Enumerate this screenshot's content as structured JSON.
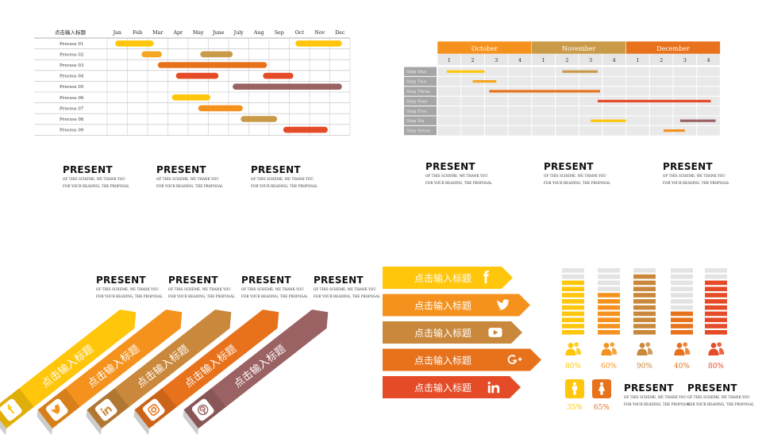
{
  "gantt1": {
    "header": "点击输入标题",
    "months": [
      "Jan",
      "Feb",
      "Mar",
      "Apr",
      "May",
      "June",
      "July",
      "Aug",
      "Sep",
      "Oct",
      "Nov",
      "Dec"
    ],
    "rows": [
      {
        "label": "Process 01",
        "bars": [
          {
            "start": 0.4,
            "end": 2.3,
            "color": "#FFC60B"
          },
          {
            "start": 9.3,
            "end": 11.6,
            "color": "#FFC60B"
          }
        ]
      },
      {
        "label": "Process 02",
        "bars": [
          {
            "start": 1.7,
            "end": 2.7,
            "color": "#F5A623"
          },
          {
            "start": 4.6,
            "end": 6.2,
            "color": "#C99A48"
          }
        ]
      },
      {
        "label": "Process 03",
        "bars": [
          {
            "start": 2.5,
            "end": 7.9,
            "color": "#E8721C"
          }
        ]
      },
      {
        "label": "Process 04",
        "bars": [
          {
            "start": 3.4,
            "end": 5.5,
            "color": "#E54B26"
          },
          {
            "start": 7.7,
            "end": 9.2,
            "color": "#E54B26"
          }
        ]
      },
      {
        "label": "Process 05",
        "bars": [
          {
            "start": 6.2,
            "end": 11.6,
            "color": "#9B6263"
          }
        ]
      },
      {
        "label": "Process 06",
        "bars": [
          {
            "start": 3.2,
            "end": 5.1,
            "color": "#FFC60B"
          }
        ]
      },
      {
        "label": "Process 07",
        "bars": [
          {
            "start": 4.5,
            "end": 6.7,
            "color": "#F5921E"
          }
        ]
      },
      {
        "label": "Process 08",
        "bars": [
          {
            "start": 6.6,
            "end": 8.4,
            "color": "#C99A48"
          }
        ]
      },
      {
        "label": "Process 09",
        "bars": [
          {
            "start": 8.7,
            "end": 10.9,
            "color": "#E54B26"
          }
        ]
      }
    ]
  },
  "gantt2": {
    "months": [
      {
        "name": "October",
        "color": "#F5921E"
      },
      {
        "name": "November",
        "color": "#C99A48"
      },
      {
        "name": "December",
        "color": "#E8721C"
      }
    ],
    "weeks": [
      "1",
      "2",
      "3",
      "4",
      "1",
      "2",
      "3",
      "4",
      "1",
      "2",
      "3",
      "4"
    ],
    "steps": [
      {
        "label": "Step One",
        "bars": [
          {
            "start": 0.4,
            "end": 2.0,
            "color": "#FFC60B"
          },
          {
            "start": 5.3,
            "end": 6.8,
            "color": "#C99A48"
          }
        ]
      },
      {
        "label": "Step Two",
        "bars": [
          {
            "start": 1.5,
            "end": 2.5,
            "color": "#F5A623"
          }
        ]
      },
      {
        "label": "Step Three",
        "bars": [
          {
            "start": 2.2,
            "end": 6.9,
            "color": "#E8721C"
          }
        ]
      },
      {
        "label": "Step Four",
        "bars": [
          {
            "start": 6.8,
            "end": 11.6,
            "color": "#E54B26"
          }
        ]
      },
      {
        "label": "Step Five",
        "bars": []
      },
      {
        "label": "Step Six",
        "bars": [
          {
            "start": 6.5,
            "end": 8.0,
            "color": "#FFC60B"
          },
          {
            "start": 10.3,
            "end": 11.8,
            "color": "#9B6263"
          }
        ]
      },
      {
        "label": "Step Seven",
        "bars": [
          {
            "start": 9.6,
            "end": 10.5,
            "color": "#F5921E"
          }
        ]
      }
    ]
  },
  "present_blocks": {
    "title": "PRESENT",
    "line1": "OF THIS SCHEME, WE THANK YOU",
    "line2": "FOR YOUR READING, THE PROPOSAL"
  },
  "ribbons": [
    {
      "label": "点击输入标题",
      "color": "#FFC60B",
      "icon": "facebook-icon"
    },
    {
      "label": "点击输入标题",
      "color": "#F5921E",
      "icon": "twitter-icon"
    },
    {
      "label": "点击输入标题",
      "color": "#C9883B",
      "icon": "linkedin-icon"
    },
    {
      "label": "点击输入标题",
      "color": "#E8721C",
      "icon": "instagram-icon"
    },
    {
      "label": "点击输入标题",
      "color": "#9B6263",
      "icon": "pinterest-icon"
    }
  ],
  "social_arrows": [
    {
      "label": "点击输入标题",
      "color": "#FFC60B",
      "icon": "facebook-icon"
    },
    {
      "label": "点击输入标题",
      "color": "#F5921E",
      "icon": "twitter-icon"
    },
    {
      "label": "点击输入标题",
      "color": "#C9883B",
      "icon": "youtube-icon"
    },
    {
      "label": "点击输入标题",
      "color": "#E8721C",
      "icon": "google-plus-icon"
    },
    {
      "label": "点击输入标题",
      "color": "#E54B26",
      "icon": "linkedin-icon"
    }
  ],
  "level_bars": [
    {
      "percent": "80%",
      "level": 0.8,
      "color": "#FFC60B"
    },
    {
      "percent": "60%",
      "level": 0.6,
      "color": "#F5921E"
    },
    {
      "percent": "90%",
      "level": 0.9,
      "color": "#C9883B"
    },
    {
      "percent": "40%",
      "level": 0.4,
      "color": "#E8721C"
    },
    {
      "percent": "80%",
      "level": 0.8,
      "color": "#E54B26"
    }
  ],
  "gender": [
    {
      "percent": "35%",
      "icon": "male-icon",
      "color": "#FFC60B"
    },
    {
      "percent": "65%",
      "icon": "female-icon",
      "color": "#E8721C"
    }
  ]
}
